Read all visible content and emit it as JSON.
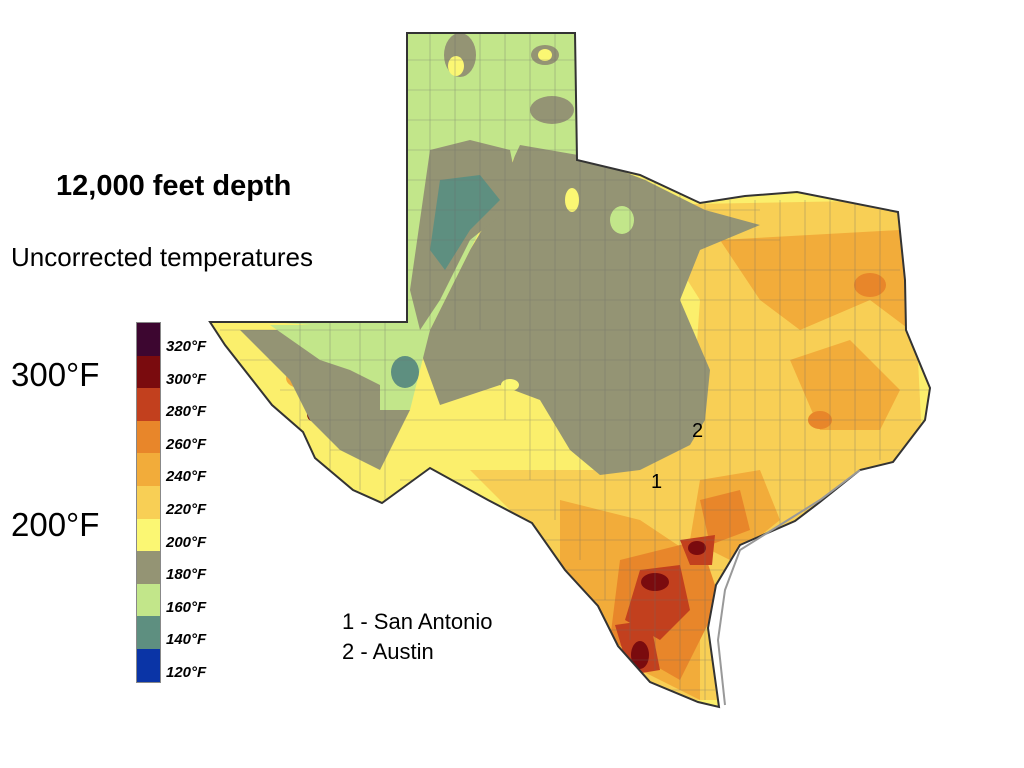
{
  "title": "12,000 feet depth",
  "subtitle": "Uncorrected temperatures",
  "big_labels": [
    "300°F",
    "200°F"
  ],
  "legend": {
    "labels": [
      "320°F",
      "300°F",
      "280°F",
      "260°F",
      "240°F",
      "220°F",
      "200°F",
      "180°F",
      "160°F",
      "140°F",
      "120°F"
    ],
    "colors": [
      "#3d0630",
      "#7a0b0e",
      "#c2401e",
      "#e8862a",
      "#f2ac3a",
      "#f8cf55",
      "#fbf773",
      "#949474",
      "#c2e68a",
      "#5e8f80",
      "#0a34a6"
    ]
  },
  "map": {
    "region": "Texas",
    "markers": [
      {
        "id": "1",
        "city": "San Antonio"
      },
      {
        "id": "2",
        "city": "Austin"
      }
    ]
  },
  "city_key": [
    "1 - San Antonio",
    "2 - Austin"
  ]
}
